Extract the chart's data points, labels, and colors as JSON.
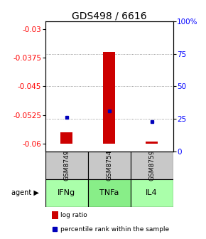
{
  "title": "GDS498 / 6616",
  "samples": [
    "GSM8749",
    "GSM8754",
    "GSM8759"
  ],
  "agents": [
    "IFNg",
    "TNFa",
    "IL4"
  ],
  "log_ratios": [
    -0.057,
    -0.036,
    -0.0595
  ],
  "log_ratio_base": -0.06,
  "percentile_ranks": [
    26,
    31,
    23
  ],
  "ylim_left": [
    -0.062,
    -0.028
  ],
  "yticks_left": [
    -0.06,
    -0.0525,
    -0.045,
    -0.0375,
    -0.03
  ],
  "ytick_labels_left": [
    "-0.06",
    "-0.0525",
    "-0.045",
    "-0.0375",
    "-0.03"
  ],
  "ylim_right": [
    0,
    100
  ],
  "yticks_right": [
    0,
    25,
    50,
    75,
    100
  ],
  "ytick_labels_right": [
    "0",
    "25",
    "50",
    "75",
    "100%"
  ],
  "bar_color": "#cc0000",
  "dot_color": "#0000bb",
  "sample_box_color": "#c8c8c8",
  "agent_colors": [
    "#aaffaa",
    "#88ee88",
    "#aaffaa"
  ],
  "grid_color": "#777777",
  "title_fontsize": 10,
  "tick_fontsize": 7.5,
  "legend_fontsize": 6.5,
  "sample_fontsize": 6.5,
  "agent_fontsize": 8
}
